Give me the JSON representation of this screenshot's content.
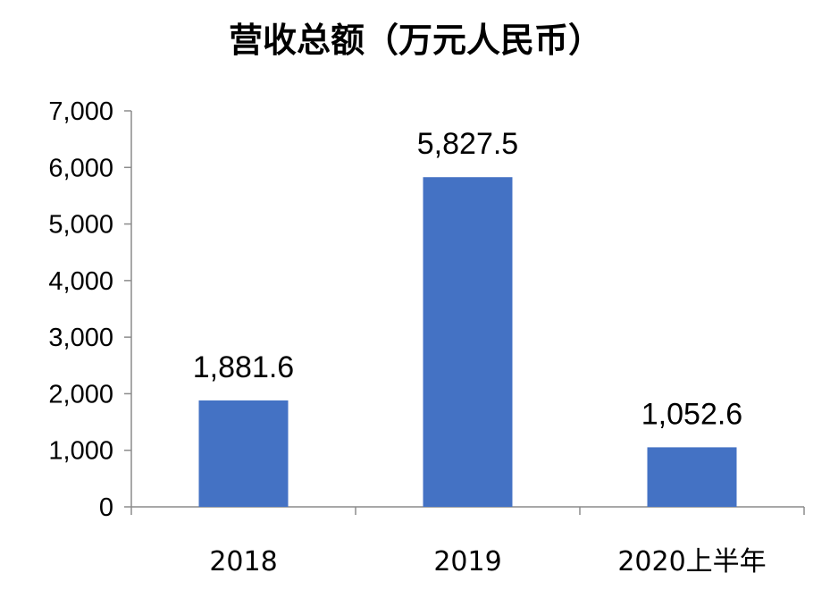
{
  "chart_data": {
    "type": "bar",
    "title": "营收总额（万元人民币）",
    "xlabel": "",
    "ylabel": "",
    "categories": [
      "2018",
      "2019",
      "2020上半年"
    ],
    "values": [
      1881.6,
      5827.5,
      1052.6
    ],
    "data_labels": [
      "1,881.6",
      "5,827.5",
      "1,052.6"
    ],
    "ylim": [
      0,
      7000
    ],
    "yticks": [
      0,
      1000,
      2000,
      3000,
      4000,
      5000,
      6000,
      7000
    ],
    "ytick_labels": [
      "0",
      "1,000",
      "2,000",
      "3,000",
      "4,000",
      "5,000",
      "6,000",
      "7,000"
    ],
    "grid": false,
    "legend": "none",
    "bar_color": "#4472C4"
  }
}
